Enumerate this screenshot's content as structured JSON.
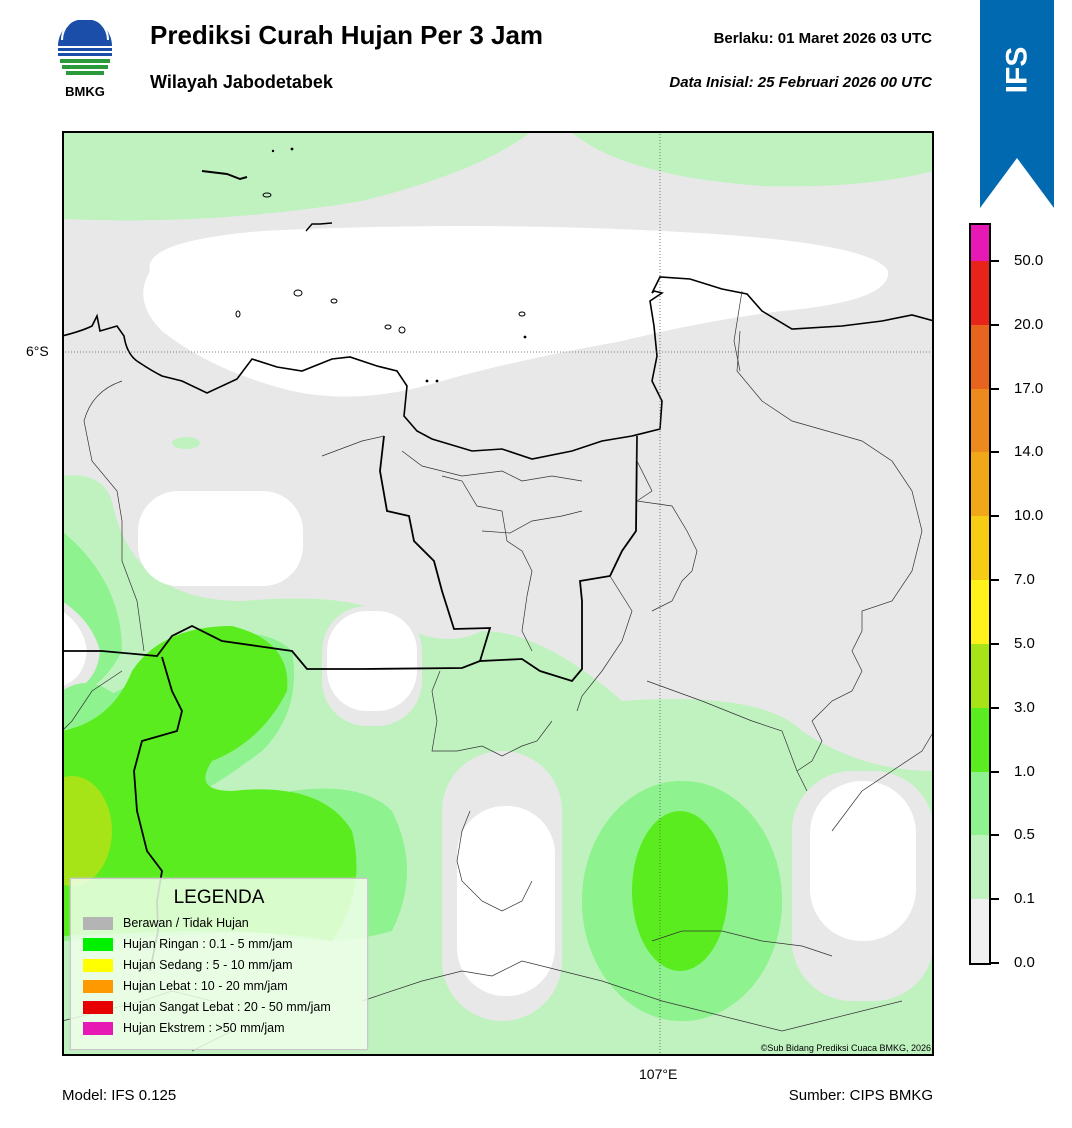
{
  "header": {
    "title": "Prediksi Curah Hujan Per 3 Jam",
    "subtitle": "Wilayah Jabodetabek",
    "valid_label": "Berlaku:  01 Maret 2026 03 UTC",
    "init_label": "Data Inisial:  25 Februari 2026 00 UTC"
  },
  "logo": {
    "text": "BMKG",
    "icon": "bmkg-logo"
  },
  "ribbon": {
    "text": "IFS",
    "color": "#0069b0"
  },
  "map": {
    "lat_label": "6°S",
    "lon_label": "107°E",
    "credit": "©Sub Bidang Prediksi Cuaca BMKG, 2026"
  },
  "legend": {
    "title": "LEGENDA",
    "items": [
      {
        "label": "Berawan / Tidak Hujan",
        "color": "#b4b4b4"
      },
      {
        "label": "Hujan Ringan : 0.1 - 5 mm/jam",
        "color": "#00f000"
      },
      {
        "label": "Hujan Sedang : 5 - 10 mm/jam",
        "color": "#ffff00"
      },
      {
        "label": "Hujan Lebat : 10 - 20 mm/jam",
        "color": "#ff9900"
      },
      {
        "label": "Hujan Sangat Lebat : 20 - 50 mm/jam",
        "color": "#e60000"
      },
      {
        "label": "Hujan Ekstrem : >50 mm/jam",
        "color": "#e619b4"
      }
    ]
  },
  "colorbar": {
    "colors": [
      "#f0f0f0",
      "#c0f2c0",
      "#8ef28e",
      "#5aec1e",
      "#a6e418",
      "#fff21a",
      "#f6cc14",
      "#f0a818",
      "#ec8a1e",
      "#e6641e",
      "#e8241a",
      "#e619b4"
    ],
    "ticks": [
      "0.0",
      "0.1",
      "0.5",
      "1.0",
      "3.0",
      "5.0",
      "7.0",
      "10.0",
      "14.0",
      "17.0",
      "20.0",
      "50.0"
    ]
  },
  "footer": {
    "model": "Model: IFS 0.125",
    "source": "Sumber: CIPS BMKG"
  }
}
